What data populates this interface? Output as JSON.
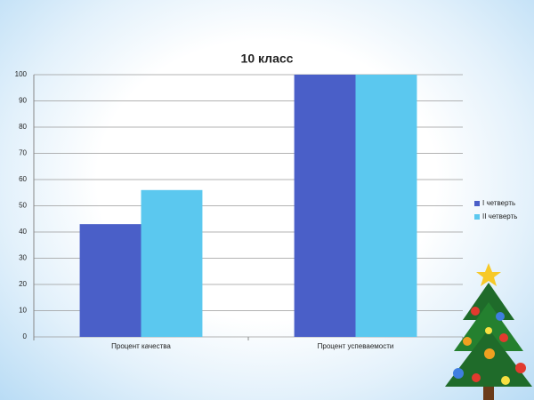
{
  "chart_data": {
    "type": "bar",
    "title": "10 класс",
    "categories": [
      "Процент  качества",
      "Процент  успеваемости"
    ],
    "series": [
      {
        "name": "I четверть",
        "color": "#4a5fc8",
        "values": [
          43,
          100
        ]
      },
      {
        "name": "II четверть",
        "color": "#5bc8ef",
        "values": [
          56,
          100
        ]
      }
    ],
    "ylim": [
      0,
      100
    ],
    "yticks": [
      0,
      10,
      20,
      30,
      40,
      50,
      60,
      70,
      80,
      90,
      100
    ],
    "grid": true,
    "legend": "right"
  }
}
